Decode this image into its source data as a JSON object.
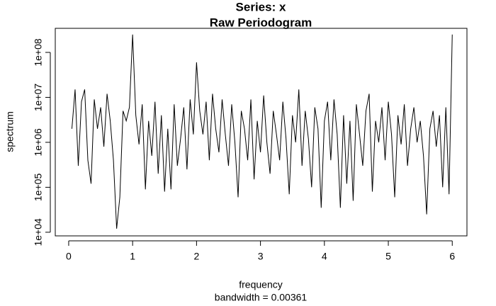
{
  "chart_data": {
    "type": "line",
    "title": "Series: x",
    "subtitle": "Raw Periodogram",
    "x_label": "frequency",
    "note": "bandwidth = 0.00361",
    "y_label": "spectrum",
    "log_y": true,
    "color": "#000000",
    "xlim": [
      -0.21,
      6.23
    ],
    "xticks": [
      0,
      1,
      2,
      3,
      4,
      5,
      6
    ],
    "ylim": [
      8300,
      343000000
    ],
    "yticks": [
      {
        "value": 10000,
        "label": "1e+04"
      },
      {
        "value": 100000,
        "label": "1e+05"
      },
      {
        "value": 1000000,
        "label": "1e+06"
      },
      {
        "value": 10000000,
        "label": "1e+07"
      },
      {
        "value": 100000000,
        "label": "1e+08"
      }
    ],
    "x": [
      0.05,
      0.1,
      0.15,
      0.2,
      0.25,
      0.3,
      0.35,
      0.4,
      0.45,
      0.5,
      0.55,
      0.6,
      0.65,
      0.7,
      0.75,
      0.8,
      0.85,
      0.9,
      0.95,
      1.0,
      1.05,
      1.1,
      1.15,
      1.2,
      1.25,
      1.3,
      1.35,
      1.4,
      1.45,
      1.5,
      1.55,
      1.6,
      1.65,
      1.7,
      1.75,
      1.8,
      1.85,
      1.9,
      1.95,
      2.0,
      2.05,
      2.1,
      2.15,
      2.2,
      2.25,
      2.3,
      2.35,
      2.4,
      2.45,
      2.5,
      2.55,
      2.6,
      2.65,
      2.7,
      2.75,
      2.8,
      2.85,
      2.9,
      2.95,
      3.0,
      3.05,
      3.1,
      3.15,
      3.2,
      3.25,
      3.3,
      3.35,
      3.4,
      3.45,
      3.5,
      3.55,
      3.6,
      3.65,
      3.7,
      3.75,
      3.8,
      3.85,
      3.9,
      3.95,
      4.0,
      4.05,
      4.1,
      4.15,
      4.2,
      4.25,
      4.3,
      4.35,
      4.4,
      4.45,
      4.5,
      4.55,
      4.6,
      4.65,
      4.7,
      4.75,
      4.8,
      4.85,
      4.9,
      4.95,
      5.0,
      5.05,
      5.1,
      5.15,
      5.2,
      5.25,
      5.3,
      5.35,
      5.4,
      5.45,
      5.5,
      5.55,
      5.6,
      5.65,
      5.7,
      5.75,
      5.8,
      5.85,
      5.9,
      5.95,
      6.0
    ],
    "values": [
      2000000.0,
      15000000.0,
      300000.0,
      8000000.0,
      15000000.0,
      400000.0,
      120000.0,
      9000000.0,
      2000000.0,
      6000000.0,
      800000.0,
      12000000.0,
      3000000.0,
      400000.0,
      12000.0,
      60000.0,
      5000000.0,
      3000000.0,
      6000000.0,
      250000000.0,
      4000000.0,
      900000.0,
      7000000.0,
      90000.0,
      3000000.0,
      500000.0,
      8000000.0,
      200000.0,
      4000000.0,
      80000.0,
      2000000.0,
      90000.0,
      7000000.0,
      300000.0,
      1200000.0,
      6000000.0,
      250000.0,
      9000000.0,
      1500000.0,
      60000000.0,
      5000000.0,
      1500000.0,
      8000000.0,
      400000.0,
      12000000.0,
      2000000.0,
      600000.0,
      9000000.0,
      1500000.0,
      300000.0,
      7000000.0,
      1000000.0,
      60000.0,
      5000000.0,
      2000000.0,
      400000.0,
      9000000.0,
      150000.0,
      3000000.0,
      600000.0,
      11000000.0,
      1000000.0,
      200000.0,
      5000000.0,
      1500000.0,
      400000.0,
      8000000.0,
      1200000.0,
      70000.0,
      4000000.0,
      1000000.0,
      15000000.0,
      300000.0,
      5000000.0,
      1200000.0,
      100000.0,
      6000000.0,
      2000000.0,
      35000.0,
      3000000.0,
      8000000.0,
      400000.0,
      9000000.0,
      1500000.0,
      35000.0,
      4000000.0,
      120000.0,
      3000000.0,
      50000.0,
      7000000.0,
      1500000.0,
      300000.0,
      5000000.0,
      12000000.0,
      80000.0,
      3000000.0,
      1000000.0,
      6000000.0,
      400000.0,
      8000000.0,
      1500000.0,
      60000.0,
      4000000.0,
      900000.0,
      7000000.0,
      300000.0,
      2000000.0,
      6000000.0,
      1000000.0,
      3000000.0,
      500000.0,
      25000.0,
      2000000.0,
      5000000.0,
      800000.0,
      4000000.0,
      100000.0,
      6000000.0,
      70000.0,
      250000000.0
    ]
  }
}
